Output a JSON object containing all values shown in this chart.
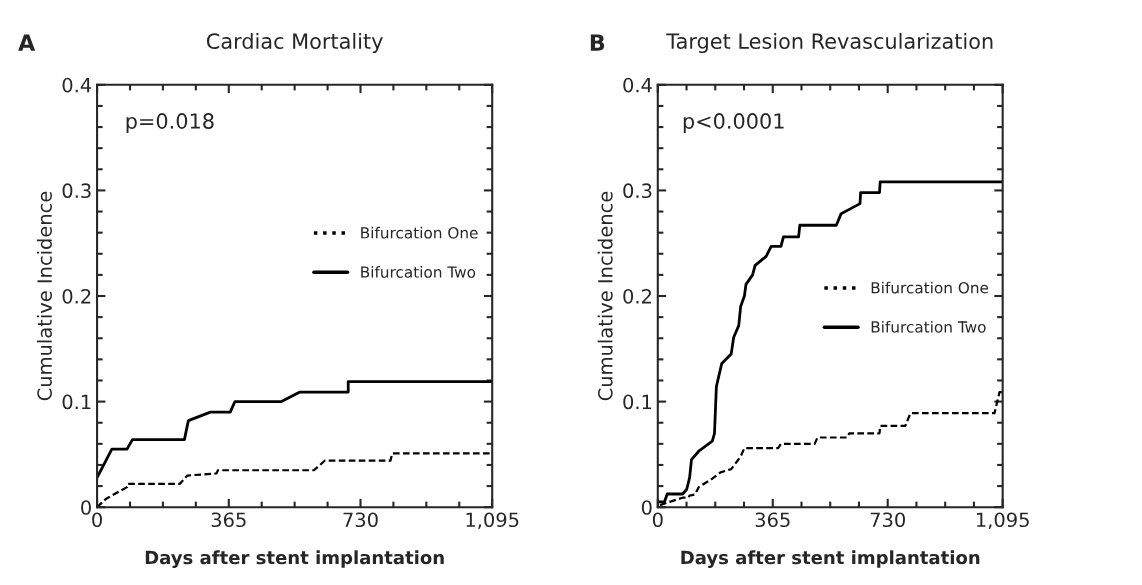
{
  "chart_data": [
    {
      "type": "line",
      "title": "Cardiac Mortality",
      "xlabel": "Days after stent implantation",
      "ylabel": "Cumulative Incidence",
      "annotations": [
        "A",
        "p=0.018"
      ],
      "xlim": [
        0,
        1095
      ],
      "xticks": [
        0,
        365,
        730,
        {
          "value": 1095,
          "label": "1,095"
        }
      ],
      "ylim": [
        0,
        0.4
      ],
      "yticks": [
        0,
        0.1,
        0.2,
        0.3,
        0.4
      ],
      "grid": false,
      "legend": "right",
      "marker": "none",
      "series": [
        {
          "name": "Bifurcation One",
          "color": "#000000",
          "line_style": "dashed",
          "x": [
            0,
            25,
            83,
            85,
            229,
            250,
            331,
            335,
            601,
            631,
            813,
            818,
            1095
          ],
          "values": [
            0,
            0.008,
            0.019,
            0.022,
            0.022,
            0.03,
            0.032,
            0.035,
            0.035,
            0.044,
            0.044,
            0.051,
            0.051
          ]
        },
        {
          "name": "Bifurcation Two",
          "color": "#000000",
          "line_style": "solid",
          "x": [
            0,
            41,
            83,
            98,
            242,
            253,
            314,
            369,
            382,
            511,
            562,
            696,
            696,
            1095
          ],
          "values": [
            0.028,
            0.055,
            0.055,
            0.064,
            0.064,
            0.082,
            0.09,
            0.09,
            0.1,
            0.1,
            0.109,
            0.109,
            0.119,
            0.119
          ]
        }
      ]
    },
    {
      "type": "line",
      "title": "Target Lesion Revascularization",
      "xlabel": "Days after stent implantation",
      "ylabel": "Cumulative Incidence",
      "annotations": [
        "B",
        "p<0.0001"
      ],
      "xlim": [
        0,
        1095
      ],
      "xticks": [
        0,
        365,
        730,
        {
          "value": 1095,
          "label": "1,095"
        }
      ],
      "ylim": [
        0,
        0.4
      ],
      "yticks": [
        0,
        0.1,
        0.2,
        0.3,
        0.4
      ],
      "grid": false,
      "legend": "right",
      "marker": "none",
      "series": [
        {
          "name": "Bifurcation One",
          "color": "#000000",
          "line_style": "dashed",
          "x": [
            7,
            37,
            79,
            96,
            101,
            118,
            130,
            173,
            199,
            233,
            263,
            275,
            382,
            391,
            498,
            507,
            601,
            608,
            704,
            706,
            786,
            802,
            1069,
            1085,
            1095
          ],
          "values": [
            0.002,
            0.005,
            0.009,
            0.009,
            0.011,
            0.012,
            0.019,
            0.027,
            0.033,
            0.036,
            0.048,
            0.056,
            0.056,
            0.06,
            0.06,
            0.066,
            0.066,
            0.07,
            0.07,
            0.077,
            0.077,
            0.089,
            0.089,
            0.109,
            0.109
          ]
        },
        {
          "name": "Bifurcation Two",
          "color": "#000000",
          "line_style": "solid",
          "x": [
            3,
            21,
            30,
            79,
            92,
            101,
            107,
            130,
            173,
            180,
            186,
            192,
            203,
            233,
            241,
            257,
            263,
            275,
            280,
            301,
            309,
            344,
            360,
            391,
            399,
            447,
            451,
            567,
            582,
            614,
            642,
            644,
            704,
            706,
            1095
          ],
          "values": [
            0.005,
            0.005,
            0.0125,
            0.0125,
            0.017,
            0.028,
            0.045,
            0.053,
            0.0625,
            0.07,
            0.114,
            0.122,
            0.136,
            0.145,
            0.161,
            0.172,
            0.19,
            0.2,
            0.211,
            0.22,
            0.229,
            0.2375,
            0.247,
            0.247,
            0.256,
            0.256,
            0.267,
            0.267,
            0.278,
            0.283,
            0.2875,
            0.298,
            0.298,
            0.308,
            0.308
          ]
        }
      ]
    }
  ]
}
